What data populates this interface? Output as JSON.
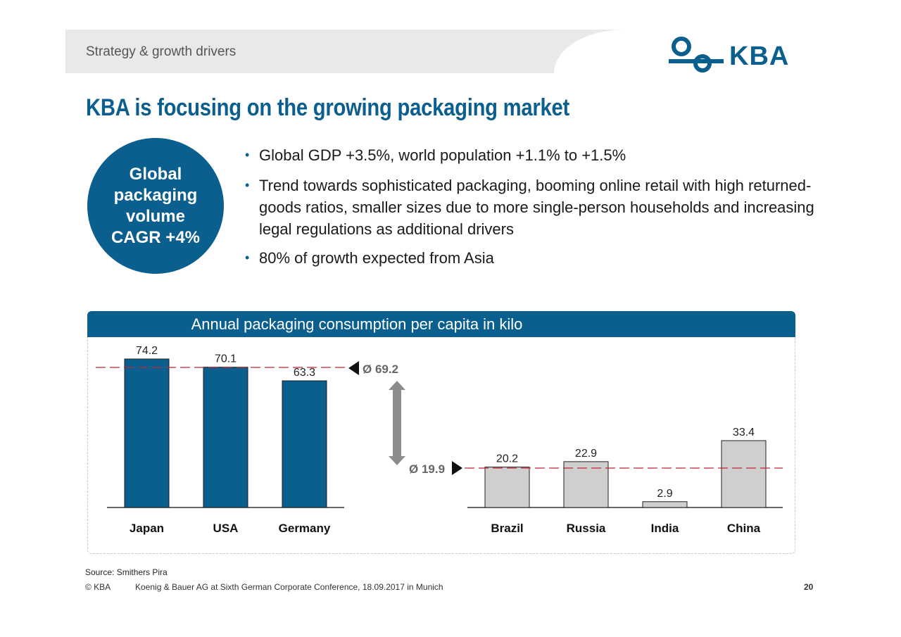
{
  "header": {
    "section_label": "Strategy & growth drivers"
  },
  "logo": {
    "text": "KBA",
    "color": "#0b5f8f"
  },
  "title": "KBA is focusing on the growing packaging market",
  "highlight": {
    "text": "Global\npackaging\nvolume\nCAGR +4%"
  },
  "bullets": [
    "Global GDP +3.5%, world population +1.1% to +1.5%",
    "Trend towards sophisticated packaging, booming online retail with high returned-goods ratios, smaller sizes due to more single-person households and increasing legal regulations as additional drivers",
    "80% of growth expected from Asia"
  ],
  "chart_header": "Annual packaging consumption per capita in kilo",
  "chart_data": {
    "type": "bar",
    "title": "Annual packaging consumption per capita in kilo",
    "groups": [
      {
        "categories": [
          "Japan",
          "USA",
          "Germany"
        ],
        "values": [
          74.2,
          70.1,
          63.3
        ],
        "value_labels": [
          "74.2",
          "70.1",
          "63.3"
        ],
        "color": "#0b5f8f",
        "average": 69.2,
        "average_label": "Ø 69.2"
      },
      {
        "categories": [
          "Brazil",
          "Russia",
          "India",
          "China"
        ],
        "values": [
          20.2,
          22.9,
          2.9,
          33.4
        ],
        "value_labels": [
          "20.2",
          "22.9",
          "2.9",
          "33.4"
        ],
        "color": "#cfcfcf",
        "average": 19.9,
        "average_label": "Ø 19.9"
      }
    ],
    "ylim": [
      0,
      74.2
    ],
    "average_line_color": "#c0262d"
  },
  "source": "Source: Smithers Pira",
  "footer": {
    "copyright": "© KBA",
    "conference": "Koenig & Bauer AG at Sixth German Corporate Conference, 18.09.2017 in Munich",
    "page": "20"
  }
}
